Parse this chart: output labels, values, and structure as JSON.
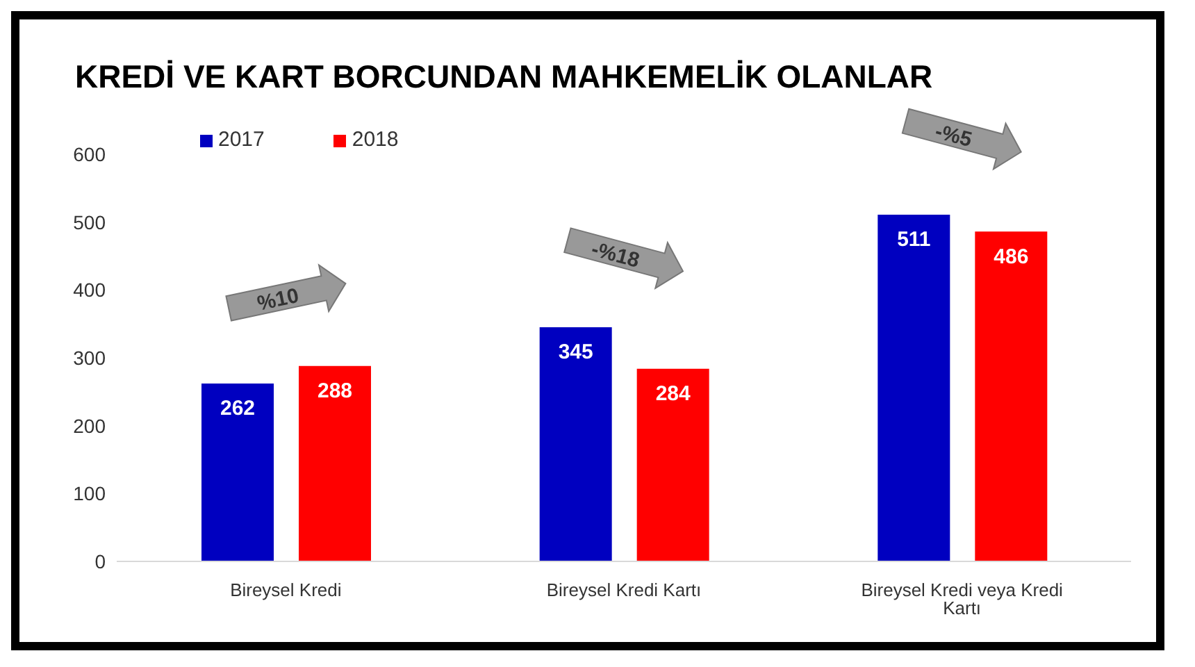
{
  "chart_data": {
    "type": "bar",
    "title": "KREDİ VE KART BORCUNDAN MAHKEMELİK OLANLAR",
    "categories": [
      "Bireysel Kredi",
      "Bireysel Kredi Kartı",
      "Bireysel Kredi veya Kredi Kartı"
    ],
    "series": [
      {
        "name": "2017",
        "color": "#0000c0",
        "values": [
          262,
          345,
          511
        ]
      },
      {
        "name": "2018",
        "color": "#ff0000",
        "values": [
          288,
          284,
          486
        ]
      }
    ],
    "ylim": [
      0,
      600
    ],
    "yticks": [
      0,
      100,
      200,
      300,
      400,
      500,
      600
    ],
    "data_labels": true,
    "legend": "top left",
    "annotations": [
      "%10",
      "-%18",
      "-%5"
    ]
  }
}
